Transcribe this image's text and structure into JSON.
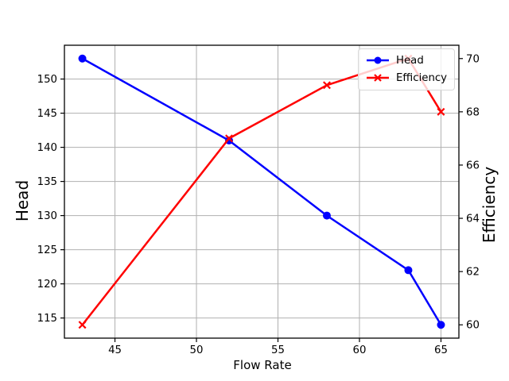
{
  "chart_data": {
    "type": "line",
    "title": "",
    "xlabel": "Flow Rate",
    "ylabel_left": "Head",
    "ylabel_right": "Efficiency",
    "x": [
      43,
      52,
      58,
      63,
      65
    ],
    "series": [
      {
        "name": "Head",
        "axis": "left",
        "marker": "circle",
        "color": "#0000ff",
        "values": [
          153,
          141,
          130,
          122,
          114
        ]
      },
      {
        "name": "Efficiency",
        "axis": "right",
        "marker": "x",
        "color": "#ff0000",
        "values": [
          60,
          67,
          69,
          70,
          68
        ]
      }
    ],
    "xlim": [
      41.9,
      66.1
    ],
    "xticks": [
      45,
      50,
      55,
      60,
      65
    ],
    "ylim_left": [
      112.05,
      154.95
    ],
    "yticks_left": [
      115,
      120,
      125,
      130,
      135,
      140,
      145,
      150
    ],
    "ylim_right": [
      59.5,
      70.5
    ],
    "yticks_right": [
      60,
      62,
      64,
      66,
      68,
      70
    ],
    "grid": true,
    "grid_color": "#b0b0b0",
    "axis_color": "#000000",
    "background": "#ffffff",
    "legend": {
      "position": "upper-right",
      "entries": [
        "Head",
        "Efficiency"
      ]
    }
  }
}
